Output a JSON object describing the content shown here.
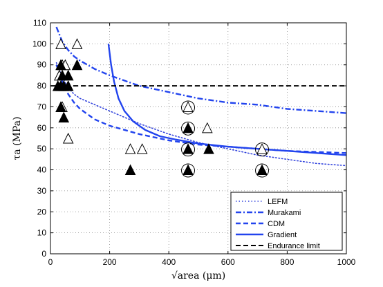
{
  "chart_data": {
    "type": "scatter",
    "title": "",
    "xlabel": "√area (μm)",
    "ylabel": "τa (MPa)",
    "xlim": [
      0,
      1000
    ],
    "ylim": [
      0,
      110
    ],
    "x_ticks": [
      "0",
      "200",
      "400",
      "600",
      "800",
      "1000"
    ],
    "y_ticks": [
      "0",
      "10",
      "20",
      "30",
      "40",
      "50",
      "60",
      "70",
      "80",
      "90",
      "100",
      "110"
    ],
    "grid": true,
    "legend_position": "bottom-right",
    "series": [
      {
        "name": "LEFM",
        "style": "dotted",
        "color": "#3344dd",
        "x": [
          20,
          40,
          60,
          80,
          100,
          150,
          200,
          300,
          400,
          500,
          600,
          700,
          800,
          900,
          1000
        ],
        "y": [
          91,
          84,
          79,
          76,
          74,
          71,
          68,
          62,
          57,
          53,
          50,
          47,
          45,
          43,
          42
        ]
      },
      {
        "name": "Murakami",
        "style": "dashdot",
        "color": "#2244ee",
        "x": [
          20,
          40,
          60,
          80,
          100,
          150,
          200,
          300,
          400,
          500,
          600,
          700,
          800,
          900,
          1000
        ],
        "y": [
          108,
          101,
          97,
          94,
          92,
          88,
          85,
          80,
          77,
          74,
          72,
          71,
          69,
          68,
          67
        ]
      },
      {
        "name": "CDM",
        "style": "dashed",
        "color": "#2244ee",
        "x": [
          20,
          40,
          60,
          80,
          100,
          150,
          200,
          300,
          400,
          500,
          600,
          700,
          800,
          900,
          1000
        ],
        "y": [
          90,
          82,
          76,
          72,
          69,
          64,
          61,
          57,
          54,
          52,
          51,
          50,
          49,
          48.5,
          48
        ]
      },
      {
        "name": "Gradient",
        "style": "solid",
        "color": "#2244ee",
        "x": [
          196,
          205,
          215,
          230,
          250,
          280,
          320,
          370,
          420,
          500,
          600,
          700,
          800,
          900,
          1000
        ],
        "y": [
          100,
          90,
          82,
          74,
          68,
          63,
          59,
          56,
          54.5,
          52.5,
          51,
          50,
          49,
          48,
          47
        ]
      },
      {
        "name": "Endurance limit",
        "style": "dashed",
        "color": "#000000",
        "x": [
          0,
          1000
        ],
        "y": [
          80,
          80
        ]
      }
    ],
    "markers": {
      "open_triangles": [
        {
          "x": 35,
          "y": 100
        },
        {
          "x": 90,
          "y": 100
        },
        {
          "x": 40,
          "y": 90
        },
        {
          "x": 50,
          "y": 90
        },
        {
          "x": 30,
          "y": 85
        },
        {
          "x": 40,
          "y": 70
        },
        {
          "x": 60,
          "y": 55
        },
        {
          "x": 270,
          "y": 50
        },
        {
          "x": 310,
          "y": 50
        },
        {
          "x": 530,
          "y": 60
        },
        {
          "x": 465,
          "y": 70
        },
        {
          "x": 715,
          "y": 50
        }
      ],
      "filled_triangles": [
        {
          "x": 35,
          "y": 90
        },
        {
          "x": 90,
          "y": 90
        },
        {
          "x": 60,
          "y": 85
        },
        {
          "x": 40,
          "y": 85
        },
        {
          "x": 25,
          "y": 80
        },
        {
          "x": 35,
          "y": 80
        },
        {
          "x": 45,
          "y": 80
        },
        {
          "x": 60,
          "y": 80
        },
        {
          "x": 35,
          "y": 70
        },
        {
          "x": 45,
          "y": 65
        },
        {
          "x": 270,
          "y": 40
        },
        {
          "x": 465,
          "y": 60
        },
        {
          "x": 465,
          "y": 50
        },
        {
          "x": 535,
          "y": 50
        },
        {
          "x": 465,
          "y": 40
        },
        {
          "x": 715,
          "y": 40
        }
      ],
      "circled": [
        {
          "x": 465,
          "y": 70
        },
        {
          "x": 465,
          "y": 60
        },
        {
          "x": 465,
          "y": 50
        },
        {
          "x": 465,
          "y": 40
        },
        {
          "x": 715,
          "y": 50
        },
        {
          "x": 715,
          "y": 40
        }
      ]
    }
  }
}
